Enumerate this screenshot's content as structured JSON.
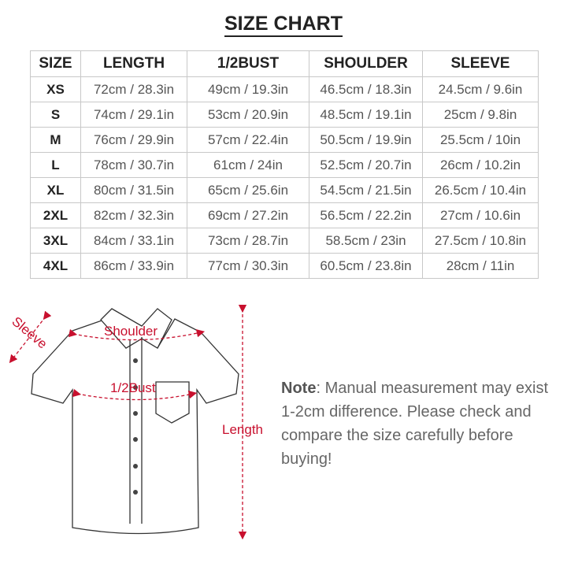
{
  "title": "SIZE CHART",
  "table": {
    "headers": [
      "SIZE",
      "LENGTH",
      "1/2BUST",
      "SHOULDER",
      "SLEEVE"
    ],
    "rows": [
      [
        "XS",
        "72cm / 28.3in",
        "49cm / 19.3in",
        "46.5cm / 18.3in",
        "24.5cm / 9.6in"
      ],
      [
        "S",
        "74cm / 29.1in",
        "53cm / 20.9in",
        "48.5cm / 19.1in",
        "25cm / 9.8in"
      ],
      [
        "M",
        "76cm / 29.9in",
        "57cm / 22.4in",
        "50.5cm / 19.9in",
        "25.5cm / 10in"
      ],
      [
        "L",
        "78cm / 30.7in",
        "61cm / 24in",
        "52.5cm / 20.7in",
        "26cm / 10.2in"
      ],
      [
        "XL",
        "80cm / 31.5in",
        "65cm / 25.6in",
        "54.5cm / 21.5in",
        "26.5cm / 10.4in"
      ],
      [
        "2XL",
        "82cm / 32.3in",
        "69cm / 27.2in",
        "56.5cm / 22.2in",
        "27cm / 10.6in"
      ],
      [
        "3XL",
        "84cm / 33.1in",
        "73cm / 28.7in",
        "58.5cm / 23in",
        "27.5cm / 10.8in"
      ],
      [
        "4XL",
        "86cm / 33.9in",
        "77cm / 30.3in",
        "60.5cm / 23.8in",
        "28cm / 11in"
      ]
    ]
  },
  "diagram": {
    "labels": {
      "sleeve": "Sleeve",
      "shoulder": "Shoulder",
      "bust": "1/2Bust",
      "length": "Length"
    },
    "accent_color": "#c8102e"
  },
  "note": {
    "label": "Note",
    "text": ": Manual measurement may exist 1-2cm difference. Please check and compare the size carefully before buying!"
  }
}
